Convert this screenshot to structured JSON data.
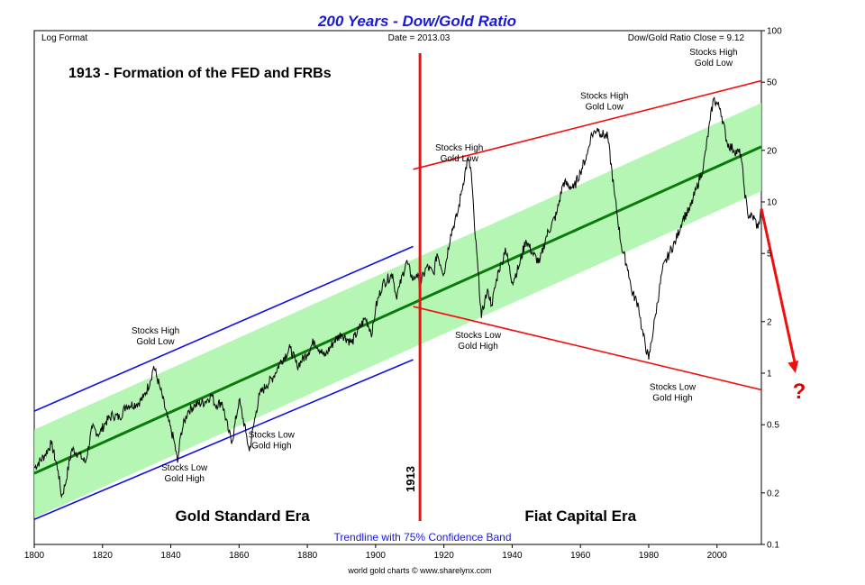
{
  "chart_data": {
    "type": "line",
    "title": "200 Years - Dow/Gold Ratio",
    "subtitle": "Trendline with 75% Confidence Band",
    "credit": "world gold charts © www.sharelynx.com",
    "header": {
      "left": "Log Format",
      "center": "Date = 2013.03",
      "right": "Dow/Gold Ratio Close = 9.12"
    },
    "headline": "1913 - Formation of the FED and FRBs",
    "marker_year": 1913,
    "marker_label": "1913",
    "question_mark": "?",
    "xlim": [
      1800,
      2013
    ],
    "ylim": [
      0.1,
      100
    ],
    "y_scale": "log",
    "x_ticks": [
      {
        "v": 1800,
        "label": "1800"
      },
      {
        "v": 1820,
        "label": "1820"
      },
      {
        "v": 1840,
        "label": "1840"
      },
      {
        "v": 1860,
        "label": "1860"
      },
      {
        "v": 1880,
        "label": "1880"
      },
      {
        "v": 1900,
        "label": "1900"
      },
      {
        "v": 1920,
        "label": "1920"
      },
      {
        "v": 1940,
        "label": "1940"
      },
      {
        "v": 1960,
        "label": "1960"
      },
      {
        "v": 1980,
        "label": "1980"
      },
      {
        "v": 2000,
        "label": "2000"
      }
    ],
    "y_ticks": [
      {
        "v": 100,
        "label": "100"
      },
      {
        "v": 50,
        "label": "50"
      },
      {
        "v": 20,
        "label": "20"
      },
      {
        "v": 10,
        "label": "10"
      },
      {
        "v": 5,
        "label": "5"
      },
      {
        "v": 2,
        "label": "2"
      },
      {
        "v": 1,
        "label": "1"
      },
      {
        "v": 0.5,
        "label": "0.5"
      },
      {
        "v": 0.2,
        "label": "0.2"
      },
      {
        "v": 0.1,
        "label": "0.1"
      }
    ],
    "grid": false,
    "colors": {
      "series": "#000000",
      "trend": "#0a7a0a",
      "band": "#a8f5a8",
      "gold_channel": "#1010e0",
      "fiat_channel": "#ee1010",
      "marker": "#ee1010"
    },
    "series": [
      {
        "x": [
          1800,
          1803,
          1805,
          1807,
          1808,
          1809,
          1811,
          1813,
          1815,
          1817,
          1819,
          1821,
          1823,
          1825,
          1827,
          1830,
          1832,
          1834,
          1835,
          1837,
          1839,
          1841,
          1842,
          1843,
          1845,
          1847,
          1850,
          1852,
          1853,
          1855,
          1857,
          1858,
          1860,
          1862,
          1863,
          1865,
          1866,
          1868,
          1870,
          1872,
          1875,
          1877,
          1880,
          1882,
          1885,
          1888,
          1890,
          1893,
          1895,
          1897,
          1899,
          1900,
          1902,
          1905,
          1906,
          1907,
          1909,
          1911,
          1912,
          1913,
          1915,
          1917,
          1918,
          1920,
          1922,
          1924,
          1925,
          1927,
          1928,
          1929,
          1930,
          1931,
          1932,
          1933,
          1934,
          1936,
          1937,
          1938,
          1940,
          1942,
          1944,
          1946,
          1948,
          1950,
          1953,
          1955,
          1958,
          1960,
          1962,
          1963,
          1965,
          1966,
          1968,
          1970,
          1972,
          1974,
          1975,
          1977,
          1978,
          1980,
          1982,
          1984,
          1986,
          1988,
          1990,
          1992,
          1994,
          1996,
          1998,
          1999,
          2001,
          2003,
          2005,
          2007,
          2008,
          2009,
          2011,
          2012,
          2013
        ],
        "y": [
          0.28,
          0.33,
          0.39,
          0.27,
          0.19,
          0.22,
          0.36,
          0.34,
          0.3,
          0.48,
          0.44,
          0.52,
          0.57,
          0.55,
          0.65,
          0.66,
          0.72,
          0.9,
          1.1,
          0.8,
          0.55,
          0.4,
          0.3,
          0.45,
          0.6,
          0.65,
          0.68,
          0.75,
          0.65,
          0.68,
          0.45,
          0.4,
          0.7,
          0.45,
          0.35,
          0.6,
          0.75,
          0.85,
          0.95,
          1.15,
          1.4,
          1.1,
          1.3,
          1.55,
          1.25,
          1.55,
          1.7,
          1.5,
          1.8,
          2.1,
          1.7,
          2.4,
          3.3,
          3.8,
          2.8,
          3.2,
          4.5,
          3.5,
          3.8,
          3.3,
          4.2,
          3.8,
          5.0,
          3.8,
          6.5,
          8.5,
          11.0,
          18.0,
          15.0,
          7.0,
          4.0,
          2.1,
          2.7,
          3.0,
          2.5,
          4.0,
          4.4,
          5.4,
          3.4,
          4.2,
          6.0,
          5.0,
          4.4,
          6.3,
          8.5,
          13.0,
          12.0,
          15.0,
          19.0,
          24.0,
          27.0,
          25.0,
          24.0,
          11.0,
          5.5,
          4.0,
          3.0,
          2.5,
          1.8,
          1.2,
          2.2,
          4.0,
          5.0,
          6.0,
          8.0,
          9.0,
          12.0,
          16.0,
          30.0,
          40.0,
          35.0,
          22.0,
          20.0,
          19.0,
          12.0,
          8.5,
          8.0,
          7.0,
          9.12
        ]
      }
    ],
    "trendline": {
      "start": [
        1800,
        0.26
      ],
      "end": [
        2013,
        21
      ]
    },
    "confidence_band": {
      "label": "75% Confidence Band",
      "lower_factor": 0.55,
      "upper_factor": 1.8
    },
    "channels": [
      {
        "name": "gold_upper",
        "start": [
          1800,
          0.6
        ],
        "end": [
          1911,
          5.5
        ]
      },
      {
        "name": "gold_lower",
        "start": [
          1800,
          0.14
        ],
        "end": [
          1911,
          1.2
        ]
      },
      {
        "name": "fiat_upper",
        "start": [
          1911,
          15.5
        ],
        "end": [
          2013,
          51
        ]
      },
      {
        "name": "fiat_lower",
        "start": [
          1911,
          2.45
        ],
        "end": [
          2013,
          0.8
        ]
      }
    ],
    "projection": {
      "from": [
        2013,
        9.12
      ],
      "to": [
        2023,
        1.0
      ]
    },
    "annotations": [
      {
        "text": "Stocks High",
        "text2": "Gold Low",
        "at": [
          1835.5,
          1.7
        ]
      },
      {
        "text": "Stocks Low",
        "text2": "Gold High",
        "at": [
          1844,
          0.27
        ]
      },
      {
        "text": "Stocks Low",
        "text2": "Gold High",
        "at": [
          1869.5,
          0.42
        ]
      },
      {
        "text": "Stocks High",
        "text2": "Gold Low",
        "at": [
          1924.5,
          20
        ]
      },
      {
        "text": "Stocks High",
        "text2": "Gold Low",
        "at": [
          1967,
          40
        ]
      },
      {
        "text": "Stocks High",
        "text2": "Gold Low",
        "at": [
          1999,
          72
        ]
      },
      {
        "text": "Stocks Low",
        "text2": "Gold High",
        "at": [
          1930,
          1.6
        ]
      },
      {
        "text": "Stocks Low",
        "text2": "Gold High",
        "at": [
          1987,
          0.8
        ]
      }
    ],
    "eras": [
      {
        "label": "Gold Standard Era",
        "x": 1861
      },
      {
        "label": "Fiat Capital Era",
        "x": 1960
      }
    ]
  }
}
